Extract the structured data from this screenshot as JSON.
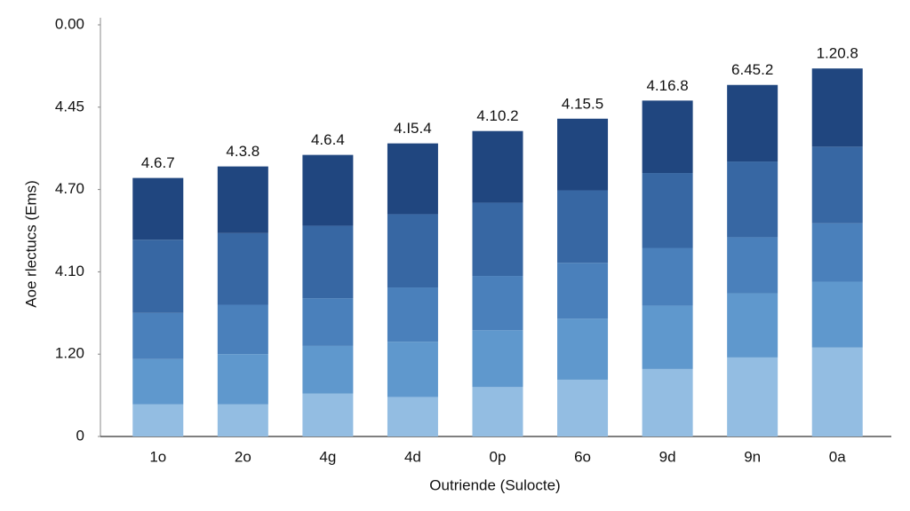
{
  "chart_data": {
    "type": "stacked_bar",
    "x_label": "Outriende (Sulocte)",
    "y_label": "Aoe rlectucs (Ems)",
    "categories": [
      "1o",
      "2o",
      "4g",
      "4d",
      "0p",
      "6o",
      "9d",
      "9n",
      "0a"
    ],
    "series": [
      {
        "color": "#93bde2",
        "values": [
          0.39,
          0.39,
          0.52,
          0.48,
          0.6,
          0.69,
          0.82,
          0.96,
          1.08
        ]
      },
      {
        "color": "#5f98cd",
        "values": [
          0.55,
          0.61,
          0.58,
          0.67,
          0.69,
          0.74,
          0.77,
          0.78,
          0.8
        ]
      },
      {
        "color": "#4a80bb",
        "values": [
          0.56,
          0.6,
          0.58,
          0.66,
          0.66,
          0.68,
          0.7,
          0.68,
          0.71
        ]
      },
      {
        "color": "#3767a3",
        "values": [
          0.89,
          0.87,
          0.88,
          0.89,
          0.89,
          0.88,
          0.91,
          0.92,
          0.93
        ]
      },
      {
        "color": "#20467f",
        "values": [
          0.75,
          0.81,
          0.86,
          0.86,
          0.87,
          0.87,
          0.88,
          0.93,
          0.95
        ]
      }
    ],
    "bar_labels": [
      "4.6.7",
      "4.3.8",
      "4.6.4",
      "4.I5.4",
      "4.10.2",
      "4.15.5",
      "4.16.8",
      "6.45.2",
      "1.20.8"
    ],
    "ylim": [
      0,
      5
    ],
    "yticks": [
      0,
      {
        "value": 1,
        "label": "1.20"
      },
      {
        "value": 2,
        "label": "4.10"
      },
      {
        "value": 3,
        "label": "4.70"
      },
      {
        "value": 4,
        "label": "4.45"
      },
      {
        "value": 5,
        "label": "0.00"
      }
    ],
    "grid": false
  }
}
